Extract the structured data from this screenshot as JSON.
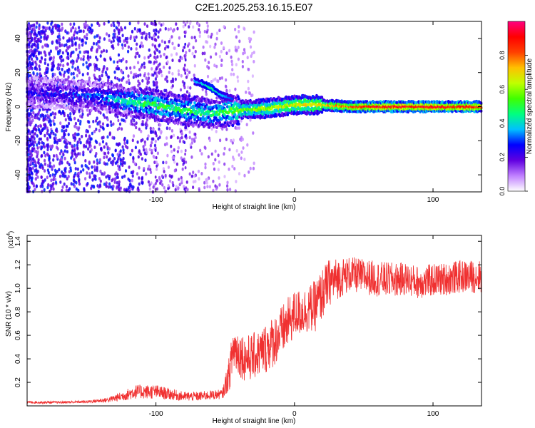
{
  "title": "C2E1.2025.253.16.15.E07",
  "chart_data": [
    {
      "type": "heatmap",
      "xlabel": "Height of straight line (km)",
      "ylabel": "Frequency (Hz)",
      "xlim": [
        -193,
        135
      ],
      "ylim": [
        -50,
        50
      ],
      "x_ticks": [
        -100,
        0,
        100
      ],
      "x_tick_labels": [
        "-100",
        "0",
        "100"
      ],
      "y_ticks": [
        -40,
        -20,
        0,
        20,
        40
      ],
      "y_tick_labels": [
        "-40",
        "-20",
        "0",
        "20",
        "40"
      ],
      "colorbar": {
        "label": "Normalized spectral amplitude",
        "range": [
          0,
          1
        ],
        "ticks": [
          0.0,
          0.2,
          0.4,
          0.6,
          0.8
        ],
        "tick_labels": [
          "0.0",
          "0.2",
          "0.4",
          "0.6",
          "0.8"
        ],
        "colors": [
          "#ffffff",
          "#c080ff",
          "#6000e0",
          "#0000ff",
          "#00c0ff",
          "#00ff80",
          "#40ff00",
          "#c0ff00",
          "#ffc000",
          "#ff4000",
          "#ff0000",
          "#ff0080"
        ]
      },
      "ridge": {
        "x": [
          -180,
          -160,
          -140,
          -120,
          -100,
          -80,
          -60,
          -50,
          -40,
          -20,
          0,
          20,
          40,
          60,
          80,
          100,
          120,
          135
        ],
        "freq": [
          8,
          7,
          6,
          3,
          1,
          -2,
          -4,
          -3,
          -2,
          -1,
          1,
          1,
          0,
          0,
          0,
          0,
          0,
          0
        ],
        "amplitude": [
          0.22,
          0.25,
          0.3,
          0.42,
          0.5,
          0.48,
          0.45,
          0.5,
          0.55,
          0.6,
          0.65,
          0.7,
          0.8,
          0.9,
          0.9,
          0.9,
          0.88,
          0.85
        ]
      },
      "branch": {
        "x": [
          -72,
          -65,
          -60,
          -55,
          -50,
          -45
        ],
        "freq": [
          15,
          13,
          11,
          8,
          6,
          5
        ],
        "amplitude": [
          0.35,
          0.4,
          0.45,
          0.4,
          0.35,
          0.3
        ]
      }
    },
    {
      "type": "line",
      "xlabel": "Height of straight line (km)",
      "ylabel": "SNR (10 * v/v)",
      "yscale_label": "(x10",
      "yscale_exponent": "4",
      "xlim": [
        -193,
        135
      ],
      "ylim": [
        0,
        1.45
      ],
      "x_ticks": [
        -100,
        0,
        100
      ],
      "x_tick_labels": [
        "-100",
        "0",
        "100"
      ],
      "y_ticks": [
        0.2,
        0.4,
        0.6,
        0.8,
        1.0,
        1.2,
        1.4
      ],
      "y_tick_labels": [
        "0.2",
        "0.4",
        "0.6",
        "0.8",
        "1.0",
        "1.2",
        "1.4"
      ],
      "series": [
        {
          "name": "SNR",
          "color": "#f03030",
          "x": [
            -193,
            -170,
            -150,
            -135,
            -125,
            -115,
            -100,
            -90,
            -80,
            -70,
            -62,
            -52,
            -47,
            -44,
            -40,
            -35,
            -30,
            -25,
            -20,
            -15,
            -10,
            -5,
            0,
            5,
            10,
            15,
            20,
            25,
            30,
            40,
            50,
            60,
            70,
            80,
            90,
            100,
            110,
            120,
            130,
            135
          ],
          "values": [
            0.03,
            0.03,
            0.035,
            0.05,
            0.08,
            0.12,
            0.12,
            0.1,
            0.08,
            0.08,
            0.09,
            0.1,
            0.28,
            0.5,
            0.45,
            0.4,
            0.42,
            0.45,
            0.5,
            0.55,
            0.62,
            0.7,
            0.78,
            0.8,
            0.82,
            0.85,
            0.95,
            1.05,
            1.08,
            1.12,
            1.1,
            1.08,
            1.07,
            1.08,
            1.05,
            1.07,
            1.08,
            1.1,
            1.1,
            1.1
          ],
          "noise": [
            0.01,
            0.01,
            0.012,
            0.02,
            0.04,
            0.06,
            0.06,
            0.05,
            0.04,
            0.04,
            0.04,
            0.04,
            0.15,
            0.22,
            0.2,
            0.2,
            0.2,
            0.2,
            0.22,
            0.22,
            0.22,
            0.22,
            0.2,
            0.2,
            0.2,
            0.22,
            0.22,
            0.2,
            0.18,
            0.15,
            0.15,
            0.15,
            0.15,
            0.14,
            0.14,
            0.14,
            0.14,
            0.14,
            0.14,
            0.14
          ]
        }
      ]
    }
  ]
}
